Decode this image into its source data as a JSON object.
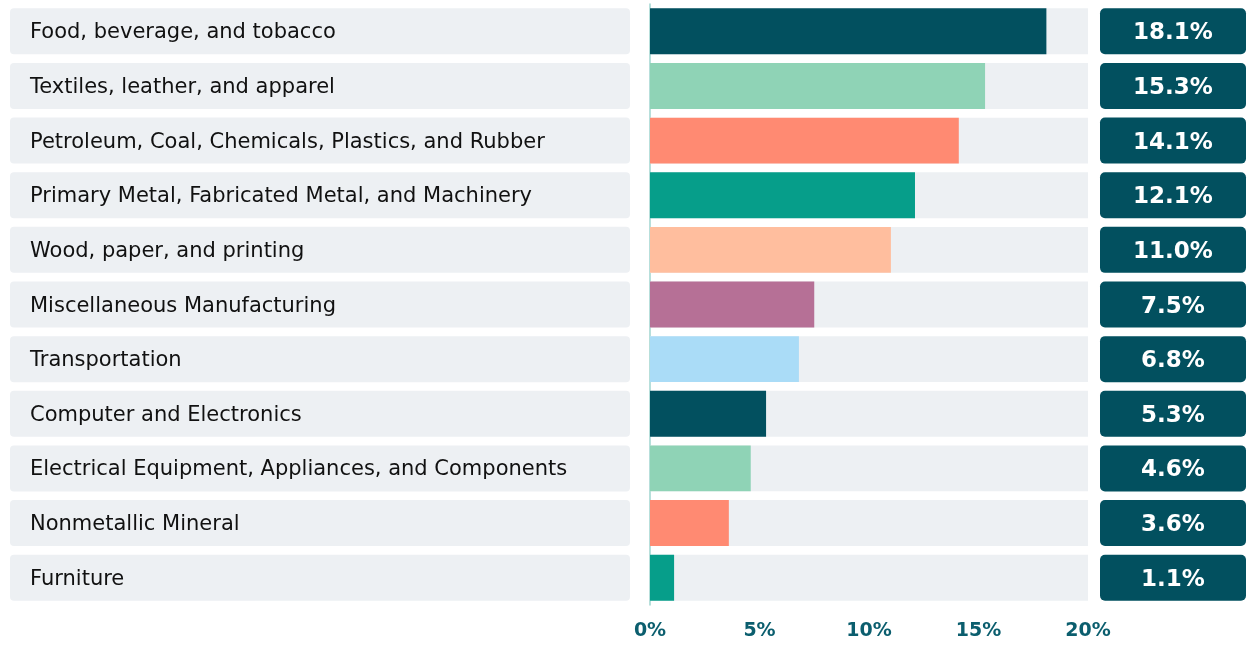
{
  "chart_data": {
    "type": "bar",
    "orientation": "horizontal",
    "categories": [
      "Food, beverage, and tobacco",
      "Textiles, leather, and apparel",
      "Petroleum, Coal, Chemicals, Plastics, and Rubber",
      "Primary Metal, Fabricated Metal, and Machinery",
      "Wood, paper, and printing",
      "Miscellaneous Manufacturing",
      "Transportation",
      "Computer and Electronics",
      "Electrical Equipment, Appliances, and Components",
      "Nonmetallic Mineral",
      "Furniture"
    ],
    "values": [
      18.1,
      15.3,
      14.1,
      12.1,
      11.0,
      7.5,
      6.8,
      5.3,
      4.6,
      3.6,
      1.1
    ],
    "value_labels": [
      "18.1%",
      "15.3%",
      "14.1%",
      "12.1%",
      "11.0%",
      "7.5%",
      "6.8%",
      "5.3%",
      "4.6%",
      "3.6%",
      "1.1%"
    ],
    "colors": [
      "#02505f",
      "#8fd3b6",
      "#ff8a72",
      "#069e8a",
      "#ffbe9e",
      "#b67096",
      "#aadcf7",
      "#02505f",
      "#8fd3b6",
      "#ff8a72",
      "#069e8a"
    ],
    "xlim": [
      0,
      20
    ],
    "xticks": [
      {
        "value": 0,
        "label": "0%"
      },
      {
        "value": 5,
        "label": "5%"
      },
      {
        "value": 10,
        "label": "10%"
      },
      {
        "value": 15,
        "label": "15%"
      },
      {
        "value": 20,
        "label": "20%"
      }
    ],
    "grid": false
  }
}
